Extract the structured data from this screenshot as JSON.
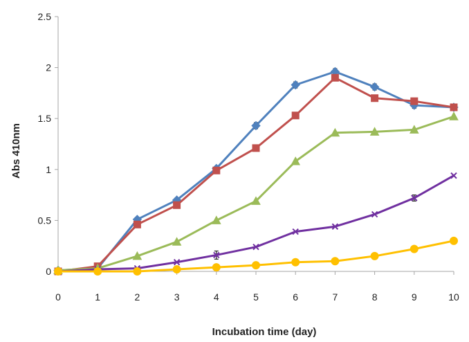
{
  "chart_data": {
    "type": "line",
    "title": "",
    "xlabel": "Incubation time (day)",
    "ylabel": "Abs 410nm",
    "x": [
      0,
      1,
      2,
      3,
      4,
      5,
      6,
      7,
      8,
      9,
      10
    ],
    "x_tick_labels": [
      "0",
      "1",
      "2",
      "3",
      "4",
      "5",
      "6",
      "7",
      "8",
      "9",
      "10"
    ],
    "y_tick_labels": [
      "0",
      "0.5",
      "1",
      "1.5",
      "2",
      "2.5"
    ],
    "xlim": [
      0,
      10
    ],
    "ylim": [
      0,
      2.5
    ],
    "grid": false,
    "legend": "none",
    "series": [
      {
        "color": "#4f81bd",
        "marker": "diamond",
        "values": [
          0.01,
          0.03,
          0.51,
          0.7,
          1.01,
          1.43,
          1.83,
          1.96,
          1.81,
          1.63,
          1.61
        ],
        "errors": [
          0,
          0,
          0,
          0,
          0,
          0.03,
          0.03,
          0.03,
          0.03,
          0.03,
          0.02
        ]
      },
      {
        "color": "#c0504d",
        "marker": "square",
        "values": [
          0.0,
          0.05,
          0.46,
          0.65,
          0.99,
          1.21,
          1.53,
          1.9,
          1.7,
          1.67,
          1.61
        ],
        "errors": [
          0,
          0,
          0,
          0,
          0,
          0,
          0,
          0.03,
          0,
          0,
          0
        ]
      },
      {
        "color": "#9bbb59",
        "marker": "triangle",
        "values": [
          0.01,
          0.03,
          0.15,
          0.29,
          0.5,
          0.69,
          1.08,
          1.36,
          1.37,
          1.39,
          1.52
        ],
        "errors": [
          0,
          0,
          0,
          0,
          0,
          0,
          0,
          0,
          0,
          0,
          0
        ]
      },
      {
        "color": "#7030a0",
        "marker": "cross",
        "values": [
          0.0,
          0.02,
          0.03,
          0.09,
          0.16,
          0.24,
          0.39,
          0.44,
          0.56,
          0.72,
          0.94
        ],
        "errors": [
          0,
          0,
          0,
          0,
          0.04,
          0,
          0,
          0,
          0,
          0.03,
          0
        ]
      },
      {
        "color": "#ffc000",
        "marker": "circle",
        "values": [
          0.0,
          0.0,
          0.0,
          0.02,
          0.04,
          0.06,
          0.09,
          0.1,
          0.15,
          0.22,
          0.3
        ],
        "errors": [
          0,
          0,
          0,
          0,
          0,
          0,
          0,
          0,
          0,
          0,
          0
        ]
      }
    ]
  }
}
